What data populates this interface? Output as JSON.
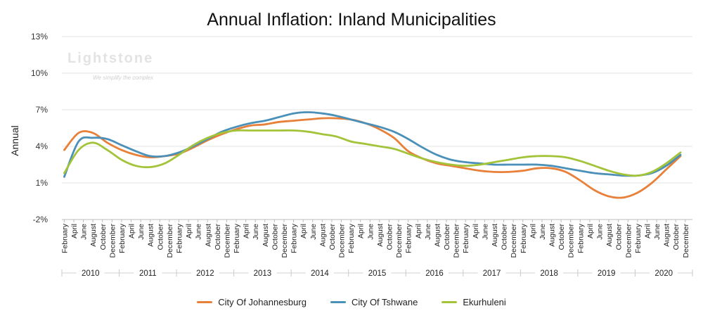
{
  "chart_data": {
    "type": "line",
    "title": "Annual Inflation: Inland Municipalities",
    "ylabel": "Annual",
    "xlabel": "",
    "ylim": [
      -2,
      13
    ],
    "y_ticks": [
      "13%",
      "10%",
      "7%",
      "4%",
      "1%",
      "-2%"
    ],
    "y_tick_values": [
      13,
      10,
      7,
      4,
      1,
      -2
    ],
    "month_labels": [
      "February",
      "April",
      "June",
      "August",
      "October",
      "December"
    ],
    "years": [
      "2010",
      "2011",
      "2012",
      "2013",
      "2014",
      "2015",
      "2016",
      "2017",
      "2018",
      "2019",
      "2020"
    ],
    "grid": true,
    "legend_position": "bottom",
    "series": [
      {
        "name": "City Of Johannesburg",
        "color": "#e8803a",
        "points": [
          [
            "2010-01",
            3.7
          ],
          [
            "2010-04",
            5.1
          ],
          [
            "2010-07",
            5.1
          ],
          [
            "2010-10",
            4.3
          ],
          [
            "2011-01",
            3.7
          ],
          [
            "2011-04",
            3.3
          ],
          [
            "2011-07",
            3.1
          ],
          [
            "2011-10",
            3.2
          ],
          [
            "2012-01",
            3.4
          ],
          [
            "2012-04",
            3.9
          ],
          [
            "2012-07",
            4.5
          ],
          [
            "2012-10",
            5.0
          ],
          [
            "2013-01",
            5.4
          ],
          [
            "2013-04",
            5.7
          ],
          [
            "2013-07",
            5.8
          ],
          [
            "2013-10",
            6.0
          ],
          [
            "2014-01",
            6.1
          ],
          [
            "2014-04",
            6.2
          ],
          [
            "2014-07",
            6.3
          ],
          [
            "2014-10",
            6.3
          ],
          [
            "2015-01",
            6.2
          ],
          [
            "2015-04",
            5.9
          ],
          [
            "2015-07",
            5.4
          ],
          [
            "2015-10",
            4.7
          ],
          [
            "2016-01",
            3.6
          ],
          [
            "2016-04",
            3.0
          ],
          [
            "2016-07",
            2.6
          ],
          [
            "2016-10",
            2.4
          ],
          [
            "2017-01",
            2.2
          ],
          [
            "2017-04",
            2.0
          ],
          [
            "2017-07",
            1.9
          ],
          [
            "2017-10",
            1.9
          ],
          [
            "2018-01",
            2.0
          ],
          [
            "2018-04",
            2.2
          ],
          [
            "2018-07",
            2.2
          ],
          [
            "2018-10",
            1.9
          ],
          [
            "2019-01",
            1.2
          ],
          [
            "2019-04",
            0.4
          ],
          [
            "2019-07",
            -0.1
          ],
          [
            "2019-10",
            -0.2
          ],
          [
            "2020-01",
            0.2
          ],
          [
            "2020-04",
            1.0
          ],
          [
            "2020-07",
            2.1
          ],
          [
            "2020-10",
            3.2
          ]
        ]
      },
      {
        "name": "City Of Tshwane",
        "color": "#4a90b8",
        "points": [
          [
            "2010-01",
            1.5
          ],
          [
            "2010-04",
            4.4
          ],
          [
            "2010-07",
            4.7
          ],
          [
            "2010-10",
            4.6
          ],
          [
            "2011-01",
            4.1
          ],
          [
            "2011-04",
            3.6
          ],
          [
            "2011-07",
            3.2
          ],
          [
            "2011-10",
            3.2
          ],
          [
            "2012-01",
            3.5
          ],
          [
            "2012-04",
            4.0
          ],
          [
            "2012-07",
            4.6
          ],
          [
            "2012-10",
            5.2
          ],
          [
            "2013-01",
            5.6
          ],
          [
            "2013-04",
            5.9
          ],
          [
            "2013-07",
            6.1
          ],
          [
            "2013-10",
            6.4
          ],
          [
            "2014-01",
            6.7
          ],
          [
            "2014-04",
            6.8
          ],
          [
            "2014-07",
            6.7
          ],
          [
            "2014-10",
            6.5
          ],
          [
            "2015-01",
            6.2
          ],
          [
            "2015-04",
            5.9
          ],
          [
            "2015-07",
            5.6
          ],
          [
            "2015-10",
            5.2
          ],
          [
            "2016-01",
            4.6
          ],
          [
            "2016-04",
            3.9
          ],
          [
            "2016-07",
            3.3
          ],
          [
            "2016-10",
            2.9
          ],
          [
            "2017-01",
            2.7
          ],
          [
            "2017-04",
            2.6
          ],
          [
            "2017-07",
            2.5
          ],
          [
            "2017-10",
            2.5
          ],
          [
            "2018-01",
            2.5
          ],
          [
            "2018-04",
            2.5
          ],
          [
            "2018-07",
            2.4
          ],
          [
            "2018-10",
            2.2
          ],
          [
            "2019-01",
            2.0
          ],
          [
            "2019-04",
            1.8
          ],
          [
            "2019-07",
            1.7
          ],
          [
            "2019-10",
            1.6
          ],
          [
            "2020-01",
            1.6
          ],
          [
            "2020-04",
            1.8
          ],
          [
            "2020-07",
            2.4
          ],
          [
            "2020-10",
            3.3
          ]
        ]
      },
      {
        "name": "Ekurhuleni",
        "color": "#a3c43a",
        "points": [
          [
            "2010-01",
            1.8
          ],
          [
            "2010-04",
            3.7
          ],
          [
            "2010-07",
            4.3
          ],
          [
            "2010-10",
            3.7
          ],
          [
            "2011-01",
            2.9
          ],
          [
            "2011-04",
            2.4
          ],
          [
            "2011-07",
            2.3
          ],
          [
            "2011-10",
            2.6
          ],
          [
            "2012-01",
            3.3
          ],
          [
            "2012-04",
            4.1
          ],
          [
            "2012-07",
            4.7
          ],
          [
            "2012-10",
            5.1
          ],
          [
            "2013-01",
            5.3
          ],
          [
            "2013-04",
            5.3
          ],
          [
            "2013-07",
            5.3
          ],
          [
            "2013-10",
            5.3
          ],
          [
            "2014-01",
            5.3
          ],
          [
            "2014-04",
            5.2
          ],
          [
            "2014-07",
            5.0
          ],
          [
            "2014-10",
            4.8
          ],
          [
            "2015-01",
            4.4
          ],
          [
            "2015-04",
            4.2
          ],
          [
            "2015-07",
            4.0
          ],
          [
            "2015-10",
            3.8
          ],
          [
            "2016-01",
            3.4
          ],
          [
            "2016-04",
            3.0
          ],
          [
            "2016-07",
            2.7
          ],
          [
            "2016-10",
            2.5
          ],
          [
            "2017-01",
            2.4
          ],
          [
            "2017-04",
            2.5
          ],
          [
            "2017-07",
            2.7
          ],
          [
            "2017-10",
            2.9
          ],
          [
            "2018-01",
            3.1
          ],
          [
            "2018-04",
            3.2
          ],
          [
            "2018-07",
            3.2
          ],
          [
            "2018-10",
            3.1
          ],
          [
            "2019-01",
            2.8
          ],
          [
            "2019-04",
            2.4
          ],
          [
            "2019-07",
            2.0
          ],
          [
            "2019-10",
            1.7
          ],
          [
            "2020-01",
            1.6
          ],
          [
            "2020-04",
            1.9
          ],
          [
            "2020-07",
            2.6
          ],
          [
            "2020-10",
            3.5
          ]
        ]
      }
    ]
  },
  "watermark": {
    "brand": "Lightstone",
    "tagline": "We simplify the complex"
  }
}
